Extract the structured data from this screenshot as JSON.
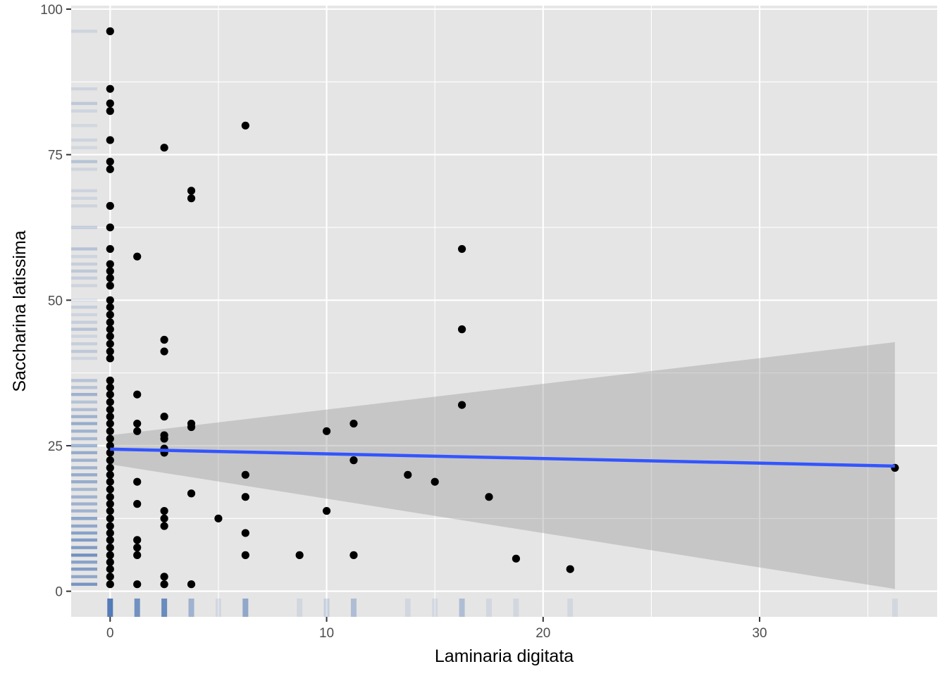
{
  "chart_data": {
    "type": "scatter",
    "title": "",
    "xlabel": "Laminaria digitata",
    "ylabel": "Saccharina latissima",
    "xlim": [
      -1.8,
      38.2
    ],
    "ylim": [
      -4.4,
      100.6
    ],
    "x_ticks": [
      0,
      10,
      20,
      30
    ],
    "y_ticks": [
      0,
      25,
      50,
      75,
      100
    ],
    "x_minor": [
      5,
      15,
      25,
      35
    ],
    "y_minor": [
      12.5,
      37.5,
      62.5,
      87.5
    ],
    "grid": true,
    "legend": "none",
    "colors": {
      "panel": "#e5e5e5",
      "grid": "#ffffff",
      "points": "#000000",
      "fit_line": "#3355ff",
      "ribbon": "#999999",
      "rug": "#4a74b4",
      "tick": "#333333",
      "tick_label": "#4d4d4d"
    },
    "points": [
      [
        0,
        96.2
      ],
      [
        0,
        86.3
      ],
      [
        0,
        83.8
      ],
      [
        0,
        82.5
      ],
      [
        0,
        77.5
      ],
      [
        0,
        73.8
      ],
      [
        0,
        72.5
      ],
      [
        0,
        66.2
      ],
      [
        0,
        62.5
      ],
      [
        0,
        58.8
      ],
      [
        0,
        56.2
      ],
      [
        0,
        55.0
      ],
      [
        0,
        53.8
      ],
      [
        0,
        52.5
      ],
      [
        0,
        50.0
      ],
      [
        0,
        48.8
      ],
      [
        0,
        47.5
      ],
      [
        0,
        46.2
      ],
      [
        0,
        45.0
      ],
      [
        0,
        43.8
      ],
      [
        0,
        42.5
      ],
      [
        0,
        41.2
      ],
      [
        0,
        40.0
      ],
      [
        0,
        36.2
      ],
      [
        0,
        35.0
      ],
      [
        0,
        33.8
      ],
      [
        0,
        32.5
      ],
      [
        0,
        31.2
      ],
      [
        0,
        30.0
      ],
      [
        0,
        28.8
      ],
      [
        0,
        27.5
      ],
      [
        0,
        26.2
      ],
      [
        0,
        25.0
      ],
      [
        0,
        23.8
      ],
      [
        0,
        22.5
      ],
      [
        0,
        21.2
      ],
      [
        0,
        20.0
      ],
      [
        0,
        18.8
      ],
      [
        0,
        17.5
      ],
      [
        0,
        16.2
      ],
      [
        0,
        15.0
      ],
      [
        0,
        13.8
      ],
      [
        0,
        12.5
      ],
      [
        0,
        11.2
      ],
      [
        0,
        10.0
      ],
      [
        0,
        8.8
      ],
      [
        0,
        7.5
      ],
      [
        0,
        6.2
      ],
      [
        0,
        5.0
      ],
      [
        0,
        3.8
      ],
      [
        0,
        2.5
      ],
      [
        0,
        1.2
      ],
      [
        1.25,
        57.5
      ],
      [
        1.25,
        33.8
      ],
      [
        1.25,
        28.8
      ],
      [
        1.25,
        27.5
      ],
      [
        1.25,
        18.8
      ],
      [
        1.25,
        15.0
      ],
      [
        1.25,
        8.8
      ],
      [
        1.25,
        7.5
      ],
      [
        1.25,
        6.2
      ],
      [
        1.25,
        1.2
      ],
      [
        2.5,
        76.2
      ],
      [
        2.5,
        43.2
      ],
      [
        2.5,
        41.2
      ],
      [
        2.5,
        30.0
      ],
      [
        2.5,
        26.8
      ],
      [
        2.5,
        26.2
      ],
      [
        2.5,
        24.5
      ],
      [
        2.5,
        23.8
      ],
      [
        2.5,
        13.8
      ],
      [
        2.5,
        12.5
      ],
      [
        2.5,
        11.2
      ],
      [
        2.5,
        2.5
      ],
      [
        2.5,
        1.2
      ],
      [
        3.75,
        68.8
      ],
      [
        3.75,
        67.5
      ],
      [
        3.75,
        28.8
      ],
      [
        3.75,
        28.2
      ],
      [
        3.75,
        16.8
      ],
      [
        3.75,
        1.2
      ],
      [
        5.0,
        12.5
      ],
      [
        6.25,
        80.0
      ],
      [
        6.25,
        20.0
      ],
      [
        6.25,
        16.2
      ],
      [
        6.25,
        10.0
      ],
      [
        6.25,
        6.2
      ],
      [
        8.75,
        6.2
      ],
      [
        10.0,
        27.5
      ],
      [
        10.0,
        13.8
      ],
      [
        11.25,
        28.8
      ],
      [
        11.25,
        22.5
      ],
      [
        11.25,
        6.2
      ],
      [
        13.75,
        20.0
      ],
      [
        15.0,
        18.8
      ],
      [
        16.25,
        58.8
      ],
      [
        16.25,
        45.0
      ],
      [
        16.25,
        32.0
      ],
      [
        17.5,
        16.2
      ],
      [
        18.75,
        5.6
      ],
      [
        21.25,
        3.8
      ],
      [
        36.25,
        21.2
      ]
    ],
    "fit": {
      "method": "lm",
      "x": [
        0,
        36.25
      ],
      "y": [
        24.4,
        21.5
      ],
      "ci_lower": [
        21.8,
        0.4
      ],
      "ci_upper": [
        26.8,
        42.8
      ]
    },
    "rug": {
      "x": [
        {
          "v": 0,
          "a": 0.95
        },
        {
          "v": 1.25,
          "a": 0.75
        },
        {
          "v": 2.5,
          "a": 0.8
        },
        {
          "v": 3.75,
          "a": 0.45
        },
        {
          "v": 5.0,
          "a": 0.12
        },
        {
          "v": 6.25,
          "a": 0.55
        },
        {
          "v": 8.75,
          "a": 0.12
        },
        {
          "v": 10.0,
          "a": 0.2
        },
        {
          "v": 11.25,
          "a": 0.35
        },
        {
          "v": 13.75,
          "a": 0.12
        },
        {
          "v": 15.0,
          "a": 0.12
        },
        {
          "v": 16.25,
          "a": 0.35
        },
        {
          "v": 17.5,
          "a": 0.12
        },
        {
          "v": 18.75,
          "a": 0.12
        },
        {
          "v": 21.25,
          "a": 0.12
        },
        {
          "v": 36.25,
          "a": 0.12
        }
      ],
      "y": [
        {
          "v": 96.2,
          "a": 0.15
        },
        {
          "v": 86.3,
          "a": 0.15
        },
        {
          "v": 83.8,
          "a": 0.25
        },
        {
          "v": 82.5,
          "a": 0.15
        },
        {
          "v": 80.0,
          "a": 0.12
        },
        {
          "v": 77.5,
          "a": 0.15
        },
        {
          "v": 76.2,
          "a": 0.12
        },
        {
          "v": 73.8,
          "a": 0.3
        },
        {
          "v": 72.5,
          "a": 0.15
        },
        {
          "v": 68.8,
          "a": 0.15
        },
        {
          "v": 67.5,
          "a": 0.15
        },
        {
          "v": 66.2,
          "a": 0.15
        },
        {
          "v": 62.5,
          "a": 0.25
        },
        {
          "v": 58.8,
          "a": 0.3
        },
        {
          "v": 57.5,
          "a": 0.15
        },
        {
          "v": 56.2,
          "a": 0.2
        },
        {
          "v": 55.0,
          "a": 0.25
        },
        {
          "v": 53.8,
          "a": 0.2
        },
        {
          "v": 52.5,
          "a": 0.15
        },
        {
          "v": 50.0,
          "a": 0.12
        },
        {
          "v": 48.8,
          "a": 0.2
        },
        {
          "v": 47.5,
          "a": 0.15
        },
        {
          "v": 46.2,
          "a": 0.2
        },
        {
          "v": 45.0,
          "a": 0.3
        },
        {
          "v": 43.8,
          "a": 0.15
        },
        {
          "v": 42.5,
          "a": 0.2
        },
        {
          "v": 41.2,
          "a": 0.25
        },
        {
          "v": 40.0,
          "a": 0.15
        },
        {
          "v": 36.2,
          "a": 0.3
        },
        {
          "v": 35.0,
          "a": 0.3
        },
        {
          "v": 33.8,
          "a": 0.45
        },
        {
          "v": 32.5,
          "a": 0.3
        },
        {
          "v": 31.2,
          "a": 0.35
        },
        {
          "v": 30.0,
          "a": 0.45
        },
        {
          "v": 28.8,
          "a": 0.5
        },
        {
          "v": 27.5,
          "a": 0.45
        },
        {
          "v": 26.2,
          "a": 0.4
        },
        {
          "v": 25.0,
          "a": 0.5
        },
        {
          "v": 23.8,
          "a": 0.5
        },
        {
          "v": 22.5,
          "a": 0.45
        },
        {
          "v": 21.2,
          "a": 0.45
        },
        {
          "v": 20.0,
          "a": 0.5
        },
        {
          "v": 18.8,
          "a": 0.5
        },
        {
          "v": 17.5,
          "a": 0.4
        },
        {
          "v": 16.2,
          "a": 0.45
        },
        {
          "v": 15.0,
          "a": 0.45
        },
        {
          "v": 13.8,
          "a": 0.45
        },
        {
          "v": 12.5,
          "a": 0.6
        },
        {
          "v": 11.2,
          "a": 0.55
        },
        {
          "v": 10.0,
          "a": 0.6
        },
        {
          "v": 8.8,
          "a": 0.65
        },
        {
          "v": 7.5,
          "a": 0.65
        },
        {
          "v": 6.2,
          "a": 0.75
        },
        {
          "v": 5.0,
          "a": 0.6
        },
        {
          "v": 3.8,
          "a": 0.65
        },
        {
          "v": 2.5,
          "a": 0.55
        },
        {
          "v": 1.2,
          "a": 0.7
        }
      ]
    }
  }
}
